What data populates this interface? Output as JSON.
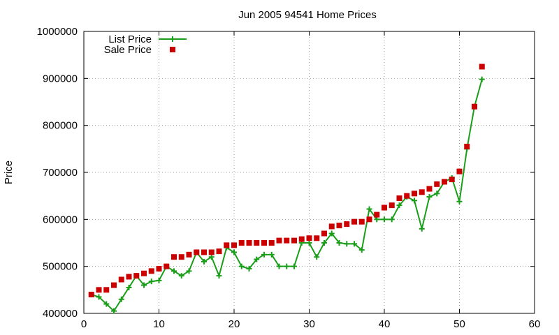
{
  "chart_data": {
    "type": "line",
    "title": "Jun 2005 94541 Home Prices",
    "xlabel": "",
    "ylabel": "Price",
    "xlim": [
      0,
      60
    ],
    "ylim": [
      400000,
      1000000
    ],
    "xticks": [
      "0",
      "10",
      "20",
      "30",
      "40",
      "50",
      "60"
    ],
    "yticks": [
      "400000",
      "500000",
      "600000",
      "700000",
      "800000",
      "900000",
      "1000000"
    ],
    "grid": true,
    "legend_position": "top-left",
    "series": [
      {
        "name": "List Price",
        "style": "line-with-plus-markers",
        "color": "#1a9e1a",
        "points": [
          [
            1,
            440000
          ],
          [
            2,
            435000
          ],
          [
            3,
            420000
          ],
          [
            4,
            405000
          ],
          [
            5,
            430000
          ],
          [
            6,
            455000
          ],
          [
            7,
            480000
          ],
          [
            8,
            460000
          ],
          [
            9,
            468000
          ],
          [
            10,
            470000
          ],
          [
            11,
            500000
          ],
          [
            12,
            490000
          ],
          [
            13,
            480000
          ],
          [
            14,
            490000
          ],
          [
            15,
            530000
          ],
          [
            16,
            510000
          ],
          [
            17,
            520000
          ],
          [
            18,
            480000
          ],
          [
            19,
            540000
          ],
          [
            20,
            530000
          ],
          [
            21,
            500000
          ],
          [
            22,
            495000
          ],
          [
            23,
            515000
          ],
          [
            24,
            525000
          ],
          [
            25,
            525000
          ],
          [
            26,
            500000
          ],
          [
            27,
            500000
          ],
          [
            28,
            500000
          ],
          [
            29,
            550000
          ],
          [
            30,
            550000
          ],
          [
            31,
            520000
          ],
          [
            32,
            550000
          ],
          [
            33,
            570000
          ],
          [
            34,
            550000
          ],
          [
            35,
            548000
          ],
          [
            36,
            548000
          ],
          [
            37,
            535000
          ],
          [
            38,
            622000
          ],
          [
            39,
            600000
          ],
          [
            40,
            600000
          ],
          [
            41,
            600000
          ],
          [
            42,
            630000
          ],
          [
            43,
            648000
          ],
          [
            44,
            640000
          ],
          [
            45,
            580000
          ],
          [
            46,
            648000
          ],
          [
            47,
            655000
          ],
          [
            48,
            680000
          ],
          [
            49,
            688000
          ],
          [
            50,
            638000
          ],
          [
            51,
            750000
          ],
          [
            52,
            840000
          ],
          [
            53,
            898000
          ]
        ]
      },
      {
        "name": "Sale Price",
        "style": "square-markers",
        "color": "#cc0000",
        "points": [
          [
            1,
            440000
          ],
          [
            2,
            450000
          ],
          [
            3,
            450000
          ],
          [
            4,
            460000
          ],
          [
            5,
            472000
          ],
          [
            6,
            478000
          ],
          [
            7,
            480000
          ],
          [
            8,
            485000
          ],
          [
            9,
            490000
          ],
          [
            10,
            495000
          ],
          [
            11,
            500000
          ],
          [
            12,
            520000
          ],
          [
            13,
            520000
          ],
          [
            14,
            525000
          ],
          [
            15,
            530000
          ],
          [
            16,
            530000
          ],
          [
            17,
            530000
          ],
          [
            18,
            532000
          ],
          [
            19,
            545000
          ],
          [
            20,
            545000
          ],
          [
            21,
            550000
          ],
          [
            22,
            550000
          ],
          [
            23,
            550000
          ],
          [
            24,
            550000
          ],
          [
            25,
            550000
          ],
          [
            26,
            555000
          ],
          [
            27,
            555000
          ],
          [
            28,
            555000
          ],
          [
            29,
            558000
          ],
          [
            30,
            560000
          ],
          [
            31,
            560000
          ],
          [
            32,
            570000
          ],
          [
            33,
            585000
          ],
          [
            34,
            587000
          ],
          [
            35,
            590000
          ],
          [
            36,
            595000
          ],
          [
            37,
            595000
          ],
          [
            38,
            600000
          ],
          [
            39,
            610000
          ],
          [
            40,
            625000
          ],
          [
            41,
            630000
          ],
          [
            42,
            645000
          ],
          [
            43,
            650000
          ],
          [
            44,
            655000
          ],
          [
            45,
            658000
          ],
          [
            46,
            665000
          ],
          [
            47,
            675000
          ],
          [
            48,
            680000
          ],
          [
            49,
            685000
          ],
          [
            50,
            702000
          ],
          [
            51,
            755000
          ],
          [
            52,
            840000
          ],
          [
            53,
            925000
          ]
        ]
      }
    ]
  }
}
